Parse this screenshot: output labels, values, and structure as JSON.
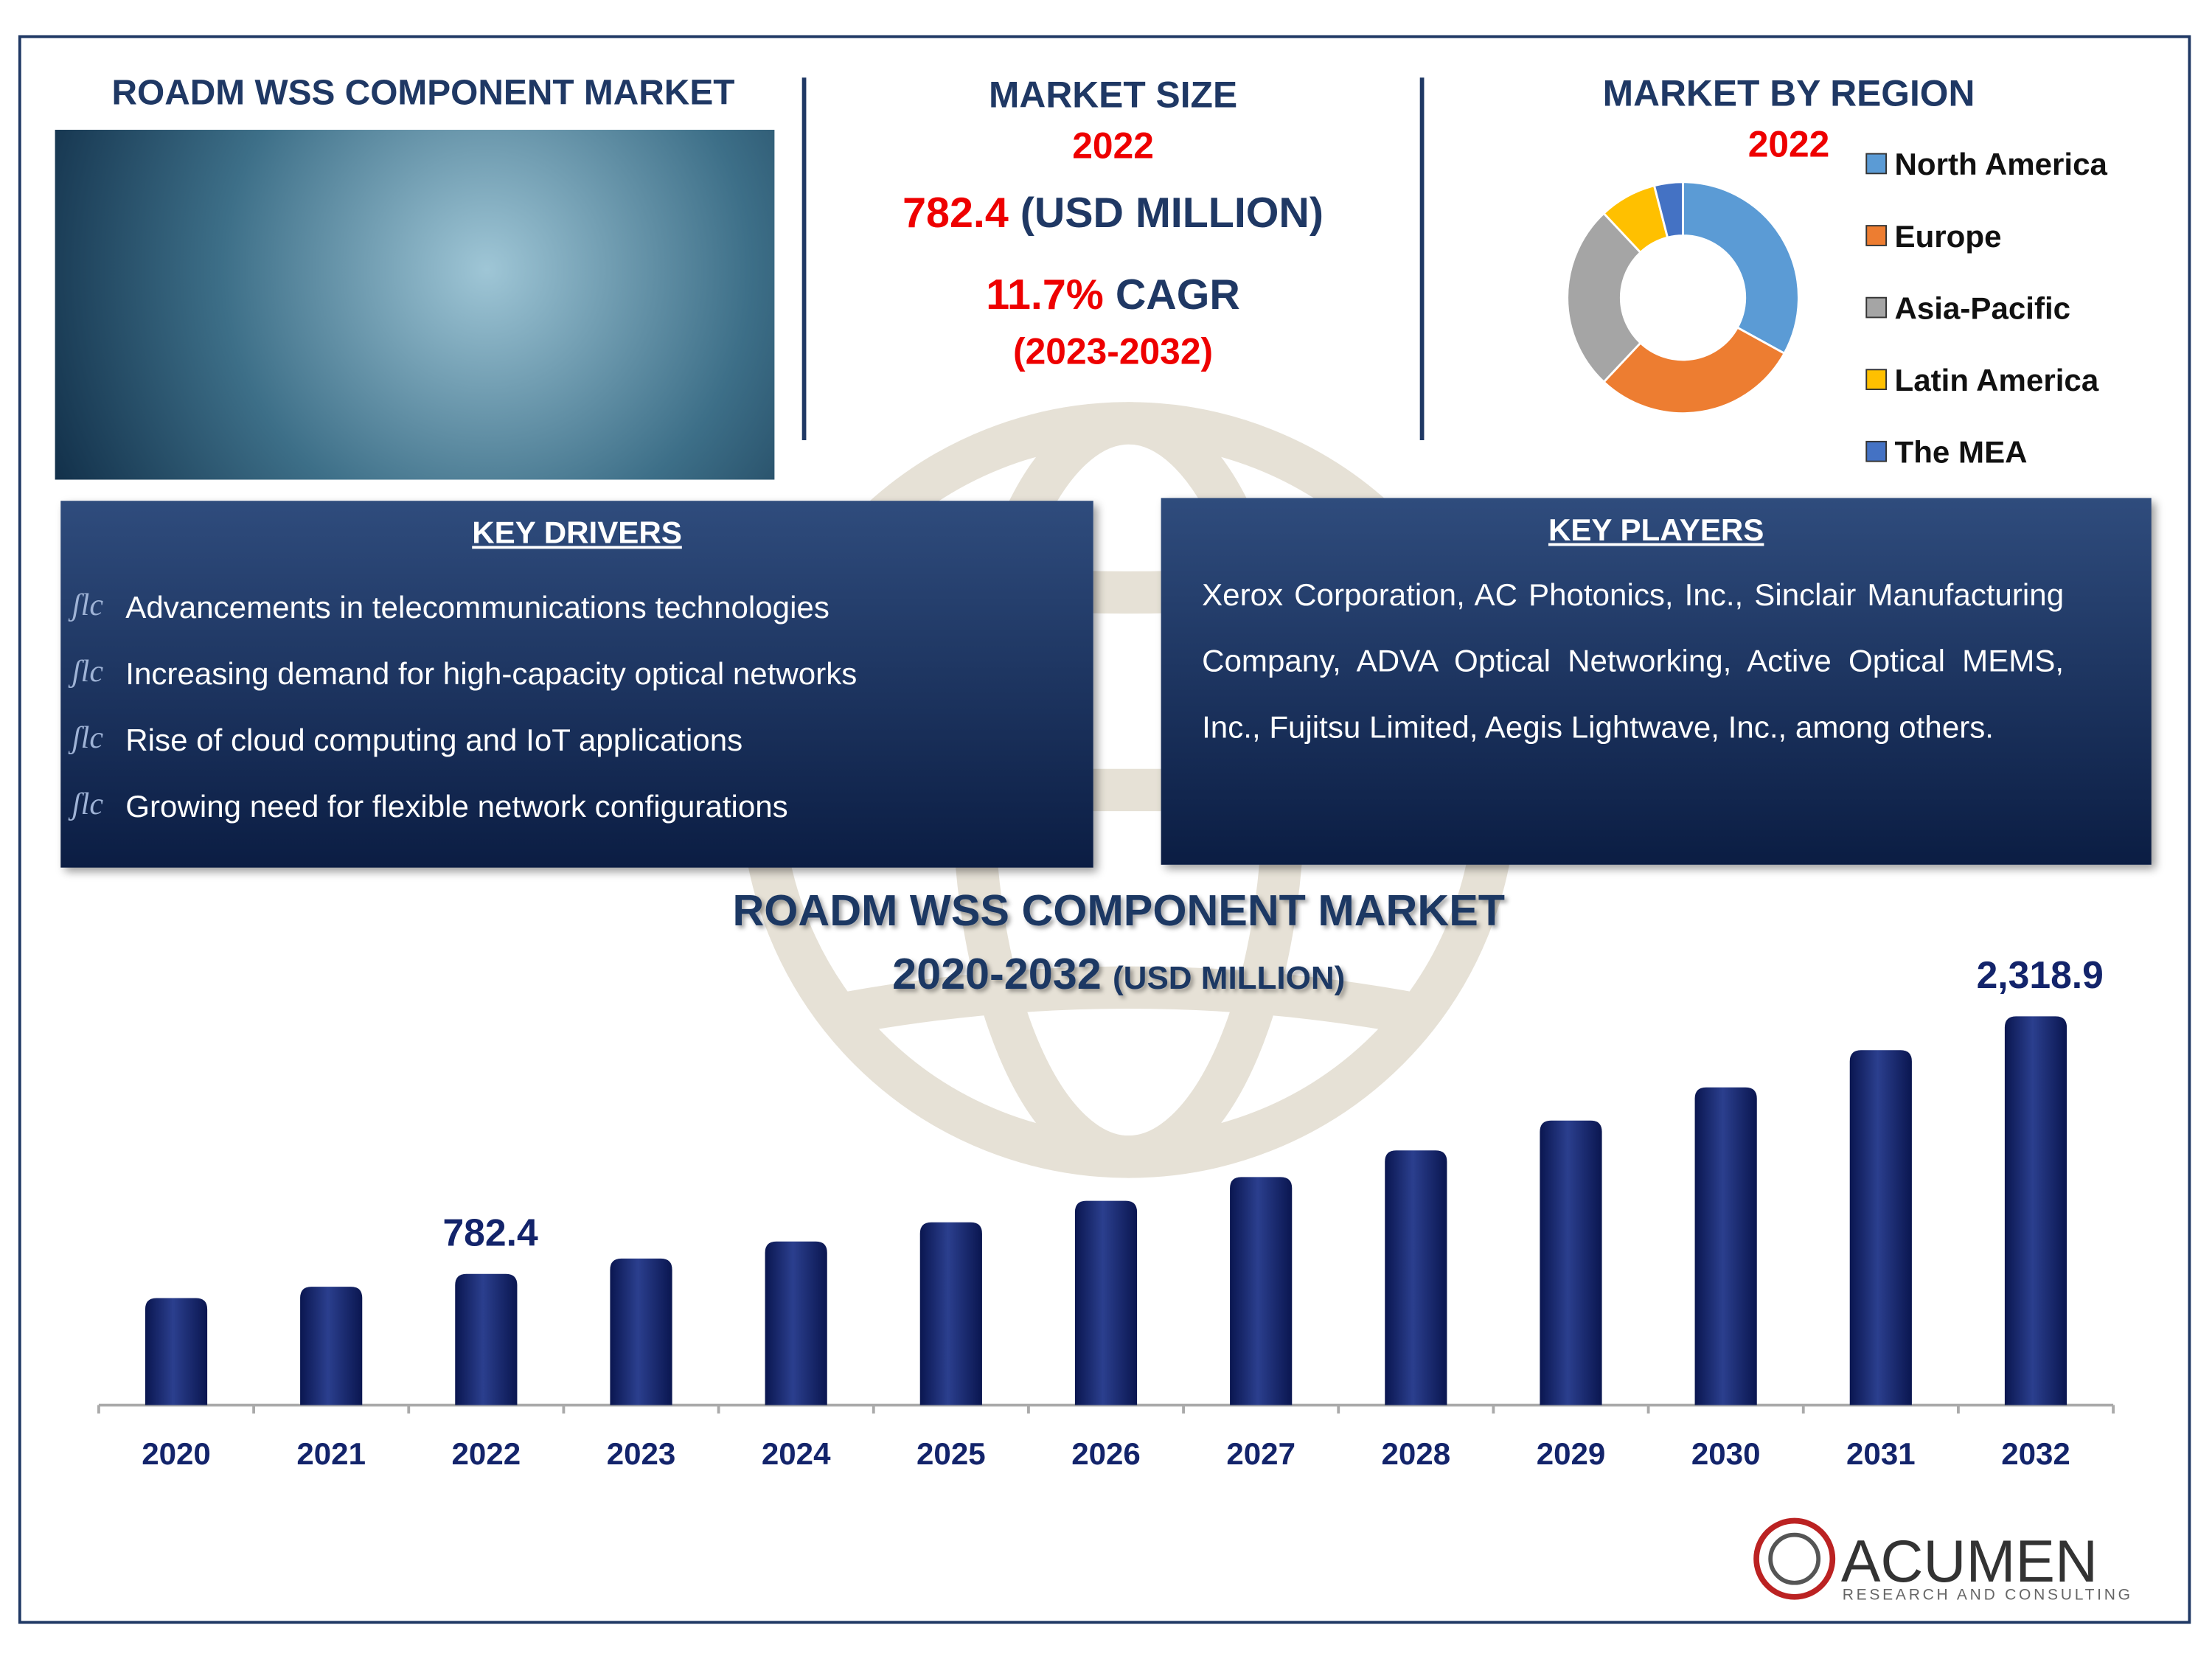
{
  "header": {
    "title": "ROADM WSS COMPONENT MARKET"
  },
  "market_size": {
    "title": "MARKET SIZE",
    "year": "2022",
    "value": "782.4",
    "unit": "(USD MILLION)",
    "cagr": "11.7%",
    "cagr_label": "CAGR",
    "period": "(2023-2032)"
  },
  "key_drivers": {
    "title": "KEY DRIVERS",
    "items": [
      "Advancements in telecommunications technologies",
      "Increasing demand for high-capacity optical networks",
      "Rise of cloud computing and IoT applications",
      "Growing need for flexible network configurations"
    ]
  },
  "key_players": {
    "title": "KEY PLAYERS",
    "text": "Xerox Corporation, AC Photonics, Inc., Sinclair Manufacturing Company, ADVA Optical Networking, Active Optical MEMS, Inc., Fujitsu Limited, Aegis Lightwave, Inc., among others."
  },
  "logo": {
    "name": "ACUMEN",
    "tagline": "RESEARCH AND CONSULTING"
  },
  "chart_data": [
    {
      "type": "pie",
      "title": "MARKET BY REGION",
      "subtitle": "2022",
      "categories": [
        "North America",
        "Europe",
        "Asia-Pacific",
        "Latin America",
        "The MEA"
      ],
      "values": [
        33,
        29,
        26,
        8,
        4
      ],
      "colors": [
        "#5b9bd5",
        "#ed7d31",
        "#a5a5a5",
        "#ffc000",
        "#4472c4"
      ],
      "donut": true,
      "legend": "right"
    },
    {
      "type": "bar",
      "title": "ROADM WSS COMPONENT MARKET",
      "subtitle": "2020-2032",
      "unit": "(USD MILLION)",
      "categories": [
        "2020",
        "2021",
        "2022",
        "2023",
        "2024",
        "2025",
        "2026",
        "2027",
        "2028",
        "2029",
        "2030",
        "2031",
        "2032"
      ],
      "values": [
        638,
        706,
        782.4,
        874,
        976,
        1090,
        1218,
        1360,
        1519,
        1697,
        1895,
        2117,
        2318.9
      ],
      "value_labels": [
        null,
        null,
        "782.4",
        null,
        null,
        null,
        null,
        null,
        null,
        null,
        null,
        null,
        "2,318.9"
      ],
      "color": "#13246b",
      "ylim": [
        0,
        2600
      ]
    }
  ]
}
